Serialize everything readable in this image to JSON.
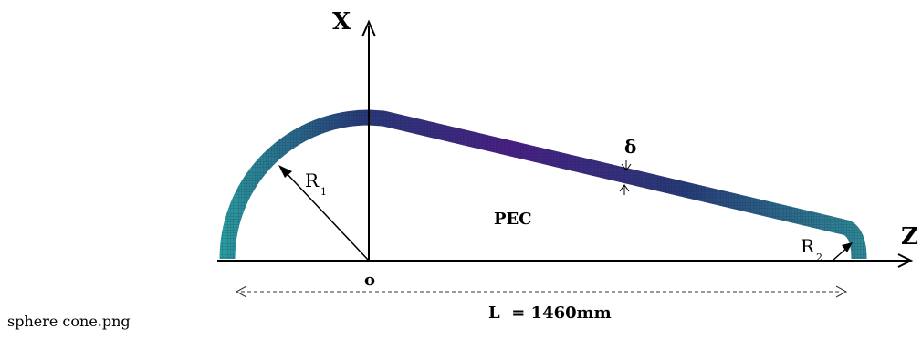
{
  "labels": {
    "x_axis": "X",
    "z_axis": "Z",
    "origin": "o",
    "r1_main": "R",
    "r1_sub": "1",
    "r2_main": "R",
    "r2_sub": "2",
    "delta": "δ",
    "pec": "PEC",
    "length": "L  = 1460mm"
  },
  "caption": "sphere cone.png",
  "colors": {
    "shell_teal": "#2a9d9f",
    "shell_navy": "#283a78",
    "shell_purple": "#4a1f86",
    "ink": "#000000"
  }
}
